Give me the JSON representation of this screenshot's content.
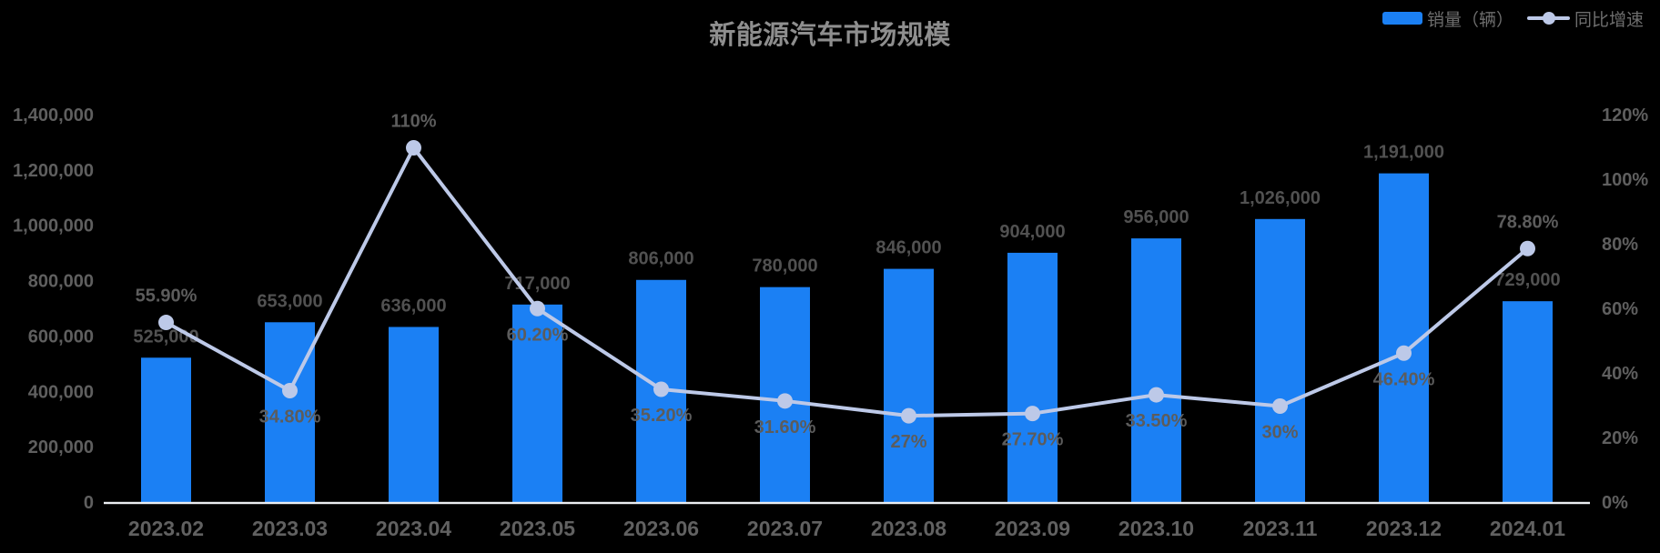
{
  "title": {
    "text": "新能源汽车市场规模",
    "color": "#8e8e8e"
  },
  "legend": {
    "items": [
      {
        "label": "销量（辆）",
        "marker": "bar-swatch"
      },
      {
        "label": "同比增速",
        "marker": "line-dot"
      }
    ],
    "text_color": "#6e6e6e"
  },
  "colors": {
    "background": "#000000",
    "bar": "#1b80f4",
    "line": "#bdc9e8",
    "marker": "#bdc9e8",
    "axis_line": "#eceef2",
    "tick_text": "#5f5f5f",
    "x_label_text": "#616161",
    "bar_label_text": "#515151",
    "pct_label_text": "#5c5c5c"
  },
  "chart_data": {
    "type": "bar+line combo",
    "title": "新能源汽车市场规模",
    "categories": [
      "2023.02",
      "2023.03",
      "2023.04",
      "2023.05",
      "2023.06",
      "2023.07",
      "2023.08",
      "2023.09",
      "2023.10",
      "2023.11",
      "2023.12",
      "2024.01"
    ],
    "series": [
      {
        "name": "销量（辆）",
        "type": "bar",
        "axis": "left",
        "values": [
          525000,
          653000,
          636000,
          717000,
          806000,
          780000,
          846000,
          904000,
          956000,
          1026000,
          1191000,
          729000
        ],
        "labels": [
          "525,000",
          "653,000",
          "636,000",
          "717,000",
          "806,000",
          "780,000",
          "846,000",
          "904,000",
          "956,000",
          "1,026,000",
          "1,191,000",
          "729,000"
        ]
      },
      {
        "name": "同比增速",
        "type": "line",
        "axis": "right",
        "values": [
          55.9,
          34.8,
          110,
          60.2,
          35.2,
          31.6,
          27,
          27.7,
          33.5,
          30,
          46.4,
          78.8
        ],
        "labels": [
          "55.90%",
          "34.80%",
          "110%",
          "60.20%",
          "35.20%",
          "31.60%",
          "27%",
          "27.70%",
          "33.50%",
          "30%",
          "46.40%",
          "78.80%"
        ],
        "label_side": [
          "above",
          "below",
          "above",
          "below",
          "below",
          "below",
          "below",
          "below",
          "below",
          "below",
          "below",
          "above"
        ]
      }
    ],
    "left_axis": {
      "min": 0,
      "max": 1400000,
      "ticks": [
        "0",
        "200,000",
        "400,000",
        "600,000",
        "800,000",
        "1,000,000",
        "1,200,000",
        "1,400,000"
      ]
    },
    "right_axis": {
      "min": 0,
      "max": 120,
      "ticks": [
        "0%",
        "20%",
        "40%",
        "60%",
        "80%",
        "100%",
        "120%"
      ]
    },
    "grid": false,
    "legend_position": "top-right"
  }
}
